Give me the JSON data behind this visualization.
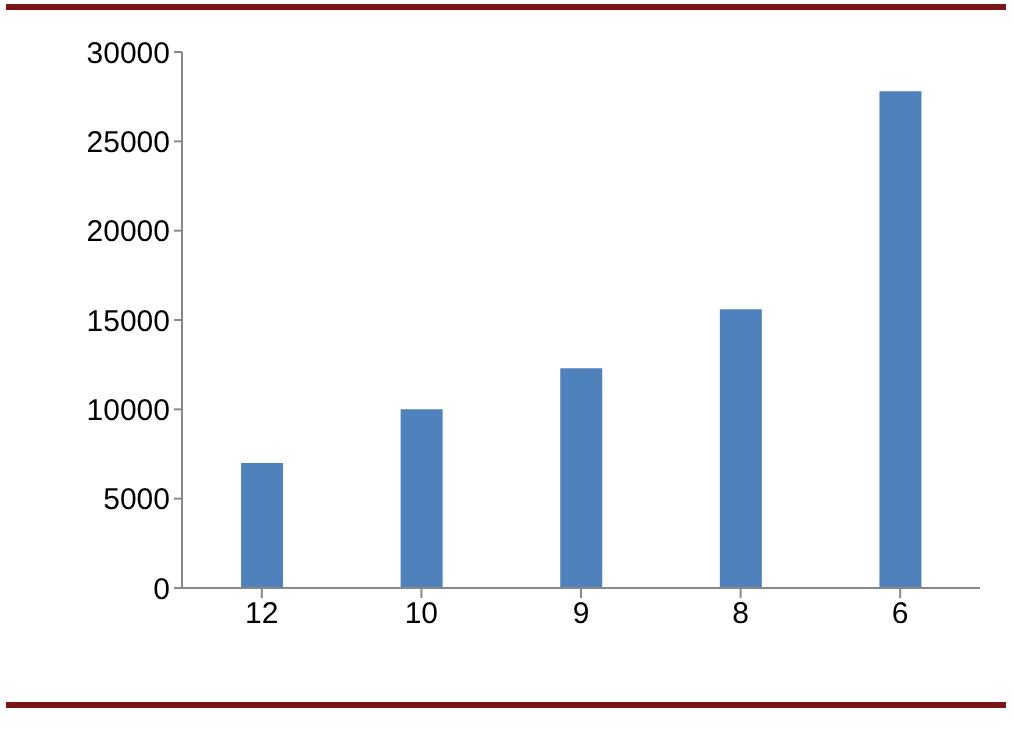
{
  "chart_data": {
    "type": "bar",
    "categories": [
      "12",
      "10",
      "9",
      "8",
      "6"
    ],
    "values": [
      7000,
      10000,
      12300,
      15600,
      27800
    ],
    "color": "#4f81bd",
    "ylim": [
      0,
      30000
    ],
    "yticks": [
      0,
      5000,
      10000,
      15000,
      20000,
      25000,
      30000
    ],
    "grid": false,
    "legend": false
  }
}
